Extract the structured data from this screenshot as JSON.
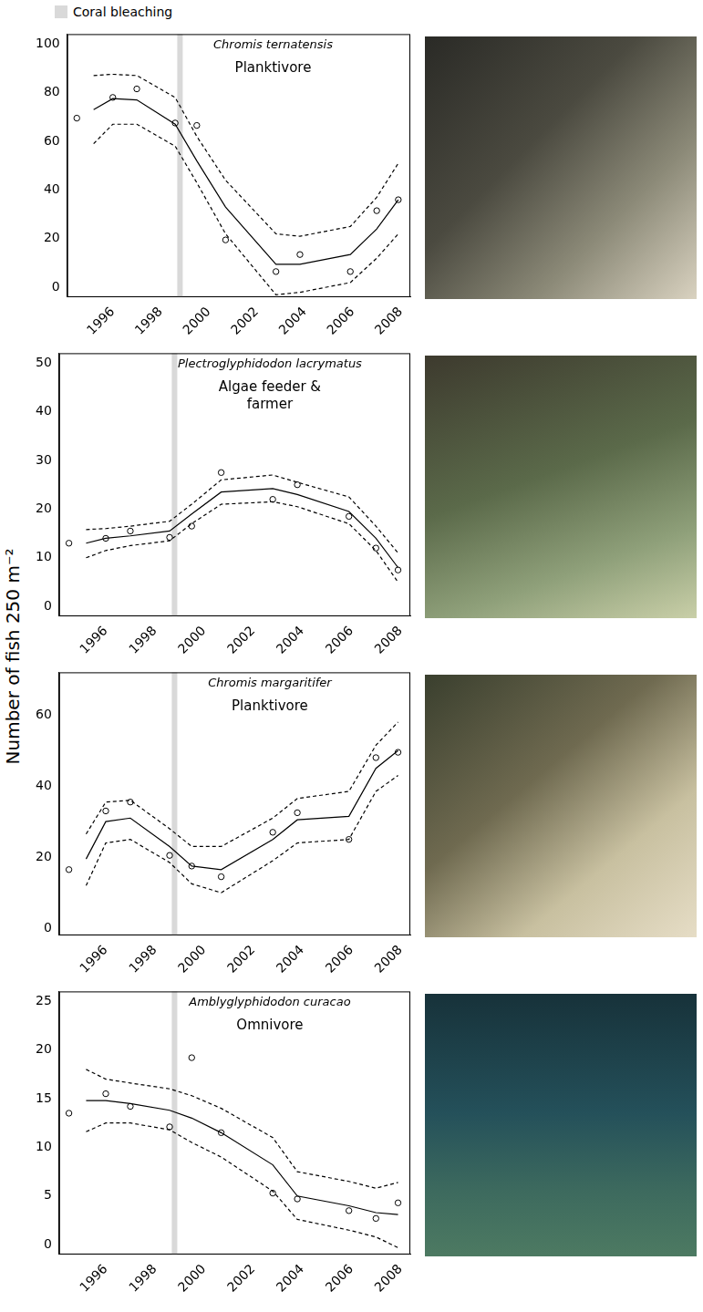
{
  "ylabel": "Number of fish 250 m⁻²",
  "key": {
    "label": "Coral bleaching",
    "color": "#d9d9d9"
  },
  "chart_data": [
    {
      "type": "line",
      "title": "Chromis ternatensis",
      "annotation": "Planktivore",
      "bleaching_x": 1998.8,
      "xlim": [
        1994.1,
        2008.4
      ],
      "xticks": [
        1996,
        1998,
        2000,
        2002,
        2004,
        2006,
        2008
      ],
      "ylim": [
        -4,
        104
      ],
      "yticks": [
        0,
        20,
        40,
        60,
        80,
        100
      ],
      "grid": false,
      "series": [
        {
          "color": "#000000",
          "line_style": "solid",
          "x": [
            1995.2,
            1996.0,
            1997.0,
            1998.6,
            1999.5,
            2000.7,
            2002.8,
            2003.8,
            2005.9,
            2007.0,
            2007.9
          ],
          "values": [
            73,
            77.5,
            77,
            67,
            52,
            33,
            9.5,
            9.5,
            13.5,
            24,
            36
          ]
        },
        {
          "color": "#000000",
          "line_style": "dashed",
          "x": [
            1995.2,
            1996.0,
            1997.0,
            1998.6,
            1999.5,
            2000.7,
            2002.8,
            2003.8,
            2005.9,
            2007.0,
            2007.9
          ],
          "values": [
            87,
            87.5,
            87,
            78,
            62,
            44,
            22,
            21,
            25,
            37,
            51
          ]
        },
        {
          "color": "#000000",
          "line_style": "dashed",
          "x": [
            1995.2,
            1996.0,
            1997.0,
            1998.6,
            1999.5,
            2000.7,
            2002.8,
            2003.8,
            2005.9,
            2007.0,
            2007.9
          ],
          "values": [
            59,
            67,
            67,
            58,
            43,
            22,
            -3,
            -2,
            2,
            12,
            22
          ]
        },
        {
          "type": "scatter",
          "marker": "circle",
          "color": "#000000",
          "x": [
            1994.5,
            1996.0,
            1997.0,
            1998.6,
            1999.5,
            2000.7,
            2002.8,
            2003.8,
            2005.9,
            2007.0,
            2007.9
          ],
          "values": [
            69.5,
            78,
            81.5,
            67.5,
            66.5,
            19.5,
            6.5,
            13.5,
            6.5,
            31.5,
            36
          ]
        }
      ]
    },
    {
      "type": "line",
      "title": "Plectroglyphidodon lacrymatus",
      "annotation": "Algae feeder & farmer",
      "bleaching_x": 1998.8,
      "xlim": [
        1994.1,
        2008.4
      ],
      "xticks": [
        1996,
        1998,
        2000,
        2002,
        2004,
        2006,
        2008
      ],
      "ylim": [
        -2,
        52
      ],
      "yticks": [
        0,
        10,
        20,
        30,
        40,
        50
      ],
      "grid": false,
      "series": [
        {
          "color": "#000000",
          "line_style": "solid",
          "x": [
            1995.2,
            1996.0,
            1997.0,
            1998.6,
            1999.5,
            2000.7,
            2002.8,
            2003.8,
            2005.9,
            2007.0,
            2007.9
          ],
          "values": [
            13,
            14,
            14.5,
            15.5,
            19,
            23.5,
            24.2,
            23,
            19.5,
            14,
            8
          ]
        },
        {
          "color": "#000000",
          "line_style": "dashed",
          "x": [
            1995.2,
            1996.0,
            1997.0,
            1998.6,
            1999.5,
            2000.7,
            2002.8,
            2003.8,
            2005.9,
            2007.0,
            2007.9
          ],
          "values": [
            15.8,
            16,
            16.5,
            17.5,
            21,
            26,
            27,
            25.5,
            22.5,
            16.5,
            11
          ]
        },
        {
          "color": "#000000",
          "line_style": "dashed",
          "x": [
            1995.2,
            1996.0,
            1997.0,
            1998.6,
            1999.5,
            2000.7,
            2002.8,
            2003.8,
            2005.9,
            2007.0,
            2007.9
          ],
          "values": [
            10,
            11.5,
            12.5,
            13.5,
            17,
            21,
            21.5,
            20.5,
            17,
            11.5,
            5
          ]
        },
        {
          "type": "scatter",
          "marker": "circle",
          "color": "#000000",
          "x": [
            1994.5,
            1996.0,
            1997.0,
            1998.6,
            1999.5,
            2000.7,
            2002.8,
            2003.8,
            2005.9,
            2007.0,
            2007.9
          ],
          "values": [
            13,
            14,
            15.5,
            14.2,
            16.5,
            27.5,
            22,
            25,
            18.5,
            12,
            7.5
          ]
        }
      ]
    },
    {
      "type": "line",
      "title": "Chromis margaritifer",
      "annotation": "Planktivore",
      "bleaching_x": 1998.8,
      "xlim": [
        1994.1,
        2008.4
      ],
      "xticks": [
        1996,
        1998,
        2000,
        2002,
        2004,
        2006,
        2008
      ],
      "ylim": [
        -2,
        72
      ],
      "yticks": [
        0,
        20,
        40,
        60
      ],
      "grid": false,
      "series": [
        {
          "color": "#000000",
          "line_style": "solid",
          "x": [
            1995.2,
            1996.0,
            1997.0,
            1998.6,
            1999.5,
            2000.7,
            2002.8,
            2003.8,
            2005.9,
            2007.0,
            2007.9
          ],
          "values": [
            19.5,
            30,
            31,
            23,
            17.5,
            16.5,
            25,
            30.5,
            31.5,
            45,
            50
          ]
        },
        {
          "color": "#000000",
          "line_style": "dashed",
          "x": [
            1995.2,
            1996.0,
            1997.0,
            1998.6,
            1999.5,
            2000.7,
            2002.8,
            2003.8,
            2005.9,
            2007.0,
            2007.9
          ],
          "values": [
            26.5,
            35.5,
            36,
            28,
            23,
            23,
            31,
            36.5,
            38.5,
            51.5,
            58
          ]
        },
        {
          "color": "#000000",
          "line_style": "dashed",
          "x": [
            1995.2,
            1996.0,
            1997.0,
            1998.6,
            1999.5,
            2000.7,
            2002.8,
            2003.8,
            2005.9,
            2007.0,
            2007.9
          ],
          "values": [
            12,
            24,
            25,
            18.5,
            12.5,
            10,
            19,
            24,
            25,
            38.5,
            43
          ]
        },
        {
          "type": "scatter",
          "marker": "circle",
          "color": "#000000",
          "x": [
            1994.5,
            1996.0,
            1997.0,
            1998.6,
            1999.5,
            2000.7,
            2002.8,
            2003.8,
            2005.9,
            2007.0,
            2007.9
          ],
          "values": [
            16.5,
            33,
            35.5,
            20.5,
            17.5,
            14.5,
            27,
            32.5,
            25,
            48,
            49.5
          ]
        }
      ]
    },
    {
      "type": "line",
      "title": "Amblyglyphidodon curacao",
      "annotation": "Omnivore",
      "bleaching_x": 1998.8,
      "xlim": [
        1994.1,
        2008.4
      ],
      "xticks": [
        1996,
        1998,
        2000,
        2002,
        2004,
        2006,
        2008
      ],
      "ylim": [
        -1,
        26
      ],
      "yticks": [
        0,
        5,
        10,
        15,
        20,
        25
      ],
      "grid": false,
      "series": [
        {
          "color": "#000000",
          "line_style": "solid",
          "x": [
            1995.2,
            1996.0,
            1997.0,
            1998.6,
            1999.5,
            2000.7,
            2002.8,
            2003.8,
            2005.9,
            2007.0,
            2007.9
          ],
          "values": [
            14.8,
            14.8,
            14.5,
            13.8,
            13,
            11.5,
            8.2,
            5,
            4,
            3.3,
            3.1
          ]
        },
        {
          "color": "#000000",
          "line_style": "dashed",
          "x": [
            1995.2,
            1996.0,
            1997.0,
            1998.6,
            1999.5,
            2000.7,
            2002.8,
            2003.8,
            2005.9,
            2007.0,
            2007.9
          ],
          "values": [
            18,
            17,
            16.6,
            16,
            15.3,
            14,
            11,
            7.5,
            6.5,
            5.8,
            6.4
          ]
        },
        {
          "color": "#000000",
          "line_style": "dashed",
          "x": [
            1995.2,
            1996.0,
            1997.0,
            1998.6,
            1999.5,
            2000.7,
            2002.8,
            2003.8,
            2005.9,
            2007.0,
            2007.9
          ],
          "values": [
            11.6,
            12.5,
            12.5,
            11.8,
            10.5,
            9,
            5.5,
            2.6,
            1.5,
            0.8,
            -0.3
          ]
        },
        {
          "type": "scatter",
          "marker": "circle",
          "color": "#000000",
          "x": [
            1994.5,
            1996.0,
            1997.0,
            1998.6,
            1999.5,
            2000.7,
            2002.8,
            2003.8,
            2005.9,
            2007.0,
            2007.9
          ],
          "values": [
            13.5,
            15.5,
            14.2,
            12.1,
            19.2,
            11.5,
            5.3,
            4.7,
            3.5,
            2.7,
            4.3
          ]
        }
      ]
    }
  ]
}
